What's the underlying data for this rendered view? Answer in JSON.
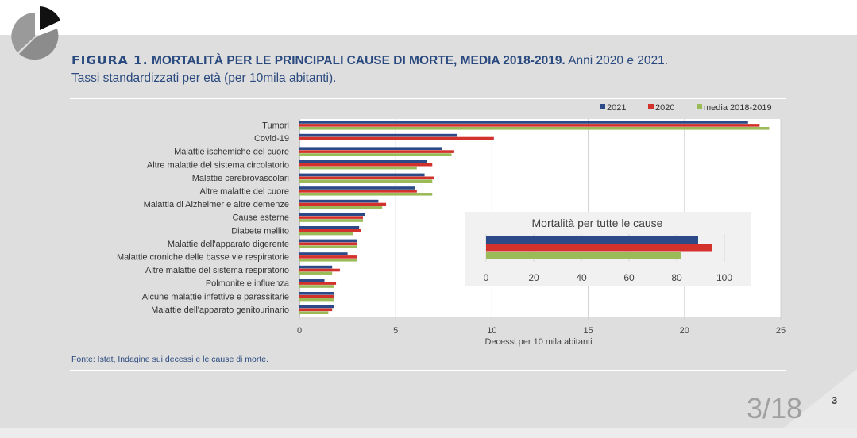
{
  "figure": {
    "label": "FIGURA 1.",
    "title_bold": "MORTALITÀ PER LE PRINCIPALI CAUSE DI MORTE, MEDIA 2018-2019.",
    "title_rest": "Anni 2020 e 2021.",
    "subtitle": "Tassi standardizzati per età (per 10mila abitanti)."
  },
  "source": "Fonte: Istat, Indagine sui decessi e le cause di morte.",
  "page": {
    "number": "3/18",
    "small": "3"
  },
  "colors": {
    "s2021": "#2b4a87",
    "s2020": "#d3312c",
    "media": "#9bbb59",
    "title_blue": "#2a4a7f"
  },
  "chart_data": [
    {
      "type": "bar",
      "orientation": "horizontal",
      "categories": [
        "Tumori",
        "Covid-19",
        "Malattie ischemiche del cuore",
        "Altre malattie del sistema circolatorio",
        "Malattie cerebrovascolari",
        "Altre malattie del cuore",
        "Malattia di Alzheimer e altre demenze",
        "Cause esterne",
        "Diabete mellito",
        "Malattie dell'apparato digerente",
        "Malattie croniche delle basse vie respiratorie",
        "Altre malattie del sistema respiratorio",
        "Polmonite e influenza",
        "Alcune malattie infettive e parassitarie",
        "Malattie dell'apparato genitourinario"
      ],
      "series": [
        {
          "name": "2021",
          "values": [
            23.3,
            8.2,
            7.4,
            6.6,
            6.5,
            6.0,
            4.1,
            3.4,
            3.1,
            3.0,
            2.5,
            1.7,
            1.3,
            1.8,
            1.8
          ]
        },
        {
          "name": "2020",
          "values": [
            23.9,
            10.1,
            8.0,
            6.9,
            7.0,
            6.1,
            4.5,
            3.3,
            3.2,
            3.0,
            3.0,
            2.1,
            1.9,
            1.8,
            1.7
          ]
        },
        {
          "name": "media 2018-2019",
          "values": [
            24.4,
            0,
            7.9,
            6.1,
            6.9,
            6.9,
            4.3,
            3.3,
            2.8,
            3.0,
            3.0,
            1.7,
            1.8,
            1.8,
            1.5
          ]
        }
      ],
      "xlabel": "Decessi per 10 mila abitanti",
      "xlim": [
        0,
        25
      ],
      "xticks": [
        "0",
        "5",
        "10",
        "15",
        "20",
        "25"
      ],
      "legend_position": "top-right",
      "grid": true
    },
    {
      "type": "bar",
      "orientation": "horizontal",
      "title": "Mortalità per tutte le cause",
      "series": [
        {
          "name": "2021",
          "values": [
            89
          ]
        },
        {
          "name": "2020",
          "values": [
            95
          ]
        },
        {
          "name": "media 2018-2019",
          "values": [
            82
          ]
        }
      ],
      "xlim": [
        0,
        110
      ],
      "xticks": [
        "0",
        "20",
        "40",
        "60",
        "80",
        "100"
      ],
      "grid": true
    }
  ]
}
